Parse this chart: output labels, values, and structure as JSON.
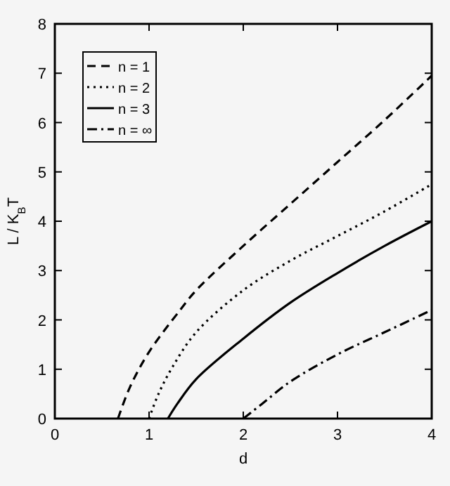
{
  "chart_data": {
    "type": "line",
    "xlabel": "d",
    "ylabel": "L / K$_{B}$T",
    "xlim": [
      0,
      4
    ],
    "ylim": [
      0,
      8
    ],
    "xticks": [
      0,
      1,
      2,
      3,
      4
    ],
    "yticks": [
      0,
      1,
      2,
      3,
      4,
      5,
      6,
      7,
      8
    ],
    "grid": false,
    "legend": "top left",
    "series": [
      {
        "name": "n = 1",
        "color": "#000000",
        "line_style": "dashed",
        "x": [
          0.67,
          0.8,
          1.0,
          1.33,
          1.5,
          2,
          2.5,
          3,
          3.5,
          4
        ],
        "values": [
          0,
          0.65,
          1.35,
          2.2,
          2.6,
          3.5,
          4.35,
          5.2,
          6.05,
          6.95
        ]
      },
      {
        "name": "n = 2",
        "color": "#000000",
        "line_style": "dotted",
        "x": [
          1.0,
          1.1,
          1.25,
          1.5,
          2,
          2.5,
          3,
          3.5,
          4
        ],
        "values": [
          0,
          0.5,
          1.05,
          1.75,
          2.6,
          3.2,
          3.7,
          4.2,
          4.75
        ]
      },
      {
        "name": "n = 3",
        "color": "#000000",
        "line_style": "solid",
        "x": [
          1.2,
          1.3,
          1.5,
          2,
          2.5,
          3,
          3.5,
          4
        ],
        "values": [
          0,
          0.3,
          0.8,
          1.62,
          2.35,
          2.95,
          3.5,
          4.0
        ]
      },
      {
        "name": "n = ∞",
        "color": "#000000",
        "line_style": "dashdot",
        "x": [
          2.0,
          2.2,
          2.5,
          3,
          3.5,
          4
        ],
        "values": [
          0,
          0.3,
          0.75,
          1.3,
          1.75,
          2.2
        ]
      }
    ]
  }
}
